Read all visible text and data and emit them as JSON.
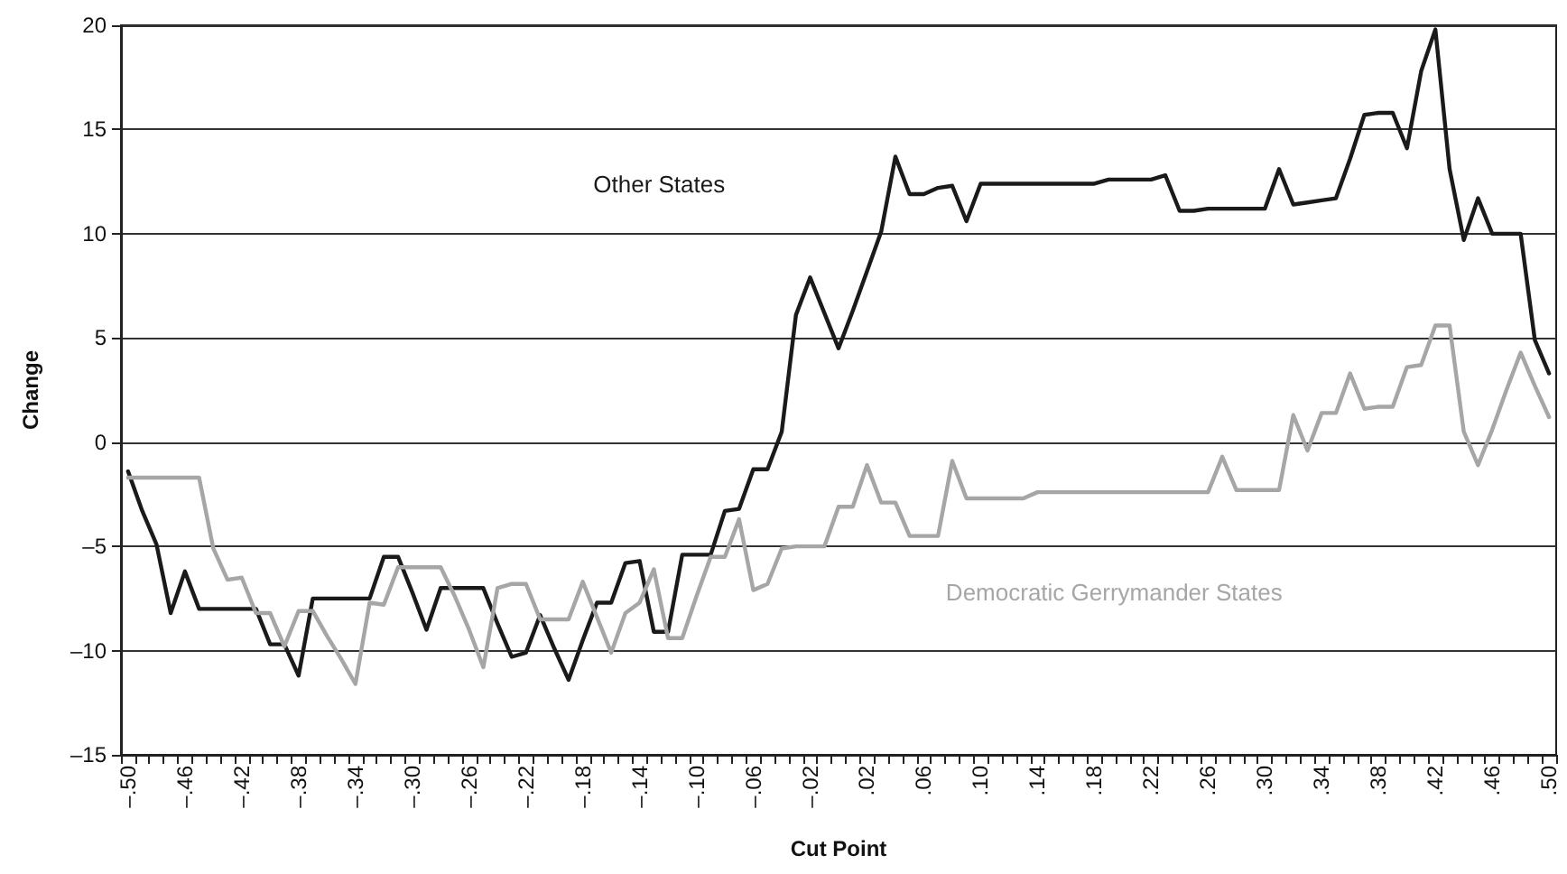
{
  "chart_data": {
    "type": "line",
    "xlabel": "Cut Point",
    "ylabel": "Change",
    "categories": [
      "–.50",
      null,
      null,
      null,
      "–.46",
      null,
      null,
      null,
      "–.42",
      null,
      null,
      null,
      "–.38",
      null,
      null,
      null,
      "–.34",
      null,
      null,
      null,
      "–.30",
      null,
      null,
      null,
      "–.26",
      null,
      null,
      null,
      "–.22",
      null,
      null,
      null,
      "–.18",
      null,
      null,
      null,
      "–.14",
      null,
      null,
      null,
      "–.10",
      null,
      null,
      null,
      "–.06",
      null,
      null,
      null,
      "–.02",
      null,
      null,
      null,
      ".02",
      null,
      null,
      null,
      ".06",
      null,
      null,
      null,
      ".10",
      null,
      null,
      null,
      ".14",
      null,
      null,
      null,
      ".18",
      null,
      null,
      null,
      ".22",
      null,
      null,
      null,
      ".26",
      null,
      null,
      null,
      ".30",
      null,
      null,
      null,
      ".34",
      null,
      null,
      null,
      ".38",
      null,
      null,
      null,
      ".42",
      null,
      null,
      null,
      ".46",
      null,
      null,
      null,
      ".50"
    ],
    "series": [
      {
        "name": "Other States",
        "color": "#1a1a1a",
        "values": [
          -1.4,
          -3.3,
          -4.9,
          -8.2,
          -6.2,
          -8.0,
          -8.0,
          -8.0,
          -8.0,
          -8.0,
          -9.7,
          -9.7,
          -11.2,
          -7.5,
          -7.5,
          -7.5,
          -7.5,
          -7.5,
          -5.5,
          -5.5,
          -7.2,
          -9.0,
          -7.0,
          -7.0,
          -7.0,
          -7.0,
          -8.7,
          -10.3,
          -10.1,
          -8.3,
          -9.9,
          -11.4,
          -9.5,
          -7.7,
          -7.7,
          -5.8,
          -5.7,
          -9.1,
          -9.1,
          -5.4,
          -5.4,
          -5.4,
          -3.3,
          -3.2,
          -1.3,
          -1.3,
          0.5,
          6.1,
          7.9,
          6.2,
          4.5,
          6.3,
          8.2,
          10.1,
          13.7,
          11.9,
          11.9,
          12.2,
          12.3,
          10.6,
          12.4,
          12.4,
          12.4,
          12.4,
          12.4,
          12.4,
          12.4,
          12.4,
          12.4,
          12.6,
          12.6,
          12.6,
          12.6,
          12.8,
          11.1,
          11.1,
          11.2,
          11.2,
          11.2,
          11.2,
          11.2,
          13.1,
          11.4,
          11.5,
          11.6,
          11.7,
          13.6,
          15.7,
          15.8,
          15.8,
          14.1,
          17.8,
          19.8,
          13.1,
          9.7,
          11.7,
          10.0,
          10.0,
          10.0,
          4.9,
          3.3
        ]
      },
      {
        "name": "Democratic Gerrymander States",
        "color": "#a6a6a6",
        "values": [
          -1.7,
          -1.7,
          -1.7,
          -1.7,
          -1.7,
          -1.7,
          -5.1,
          -6.6,
          -6.5,
          -8.2,
          -8.2,
          -9.8,
          -8.1,
          -8.1,
          -9.3,
          -10.4,
          -11.6,
          -7.7,
          -7.8,
          -6.0,
          -6.0,
          -6.0,
          -6.0,
          -7.4,
          -9.0,
          -10.8,
          -7.0,
          -6.8,
          -6.8,
          -8.5,
          -8.5,
          -8.5,
          -6.7,
          -8.4,
          -10.1,
          -8.2,
          -7.7,
          -6.1,
          -9.4,
          -9.4,
          -7.4,
          -5.5,
          -5.5,
          -3.7,
          -7.1,
          -6.8,
          -5.1,
          -5.0,
          -5.0,
          -5.0,
          -3.1,
          -3.1,
          -1.1,
          -2.9,
          -2.9,
          -4.5,
          -4.5,
          -4.5,
          -0.9,
          -2.7,
          -2.7,
          -2.7,
          -2.7,
          -2.7,
          -2.4,
          -2.4,
          -2.4,
          -2.4,
          -2.4,
          -2.4,
          -2.4,
          -2.4,
          -2.4,
          -2.4,
          -2.4,
          -2.4,
          -2.4,
          -0.7,
          -2.3,
          -2.3,
          -2.3,
          -2.3,
          1.3,
          -0.4,
          1.4,
          1.4,
          3.3,
          1.6,
          1.7,
          1.7,
          3.6,
          3.7,
          5.6,
          5.6,
          0.5,
          -1.1,
          0.6,
          2.5,
          4.3,
          2.7,
          1.2
        ]
      }
    ],
    "ylim": [
      -15,
      20
    ],
    "yticks": [
      {
        "value": -15,
        "label": "–15"
      },
      {
        "value": -10,
        "label": "–10"
      },
      {
        "value": -5,
        "label": "–5"
      },
      0,
      5,
      10,
      15,
      20
    ],
    "grid": "y",
    "legend": false,
    "marker": "none",
    "line_style": "solid"
  }
}
